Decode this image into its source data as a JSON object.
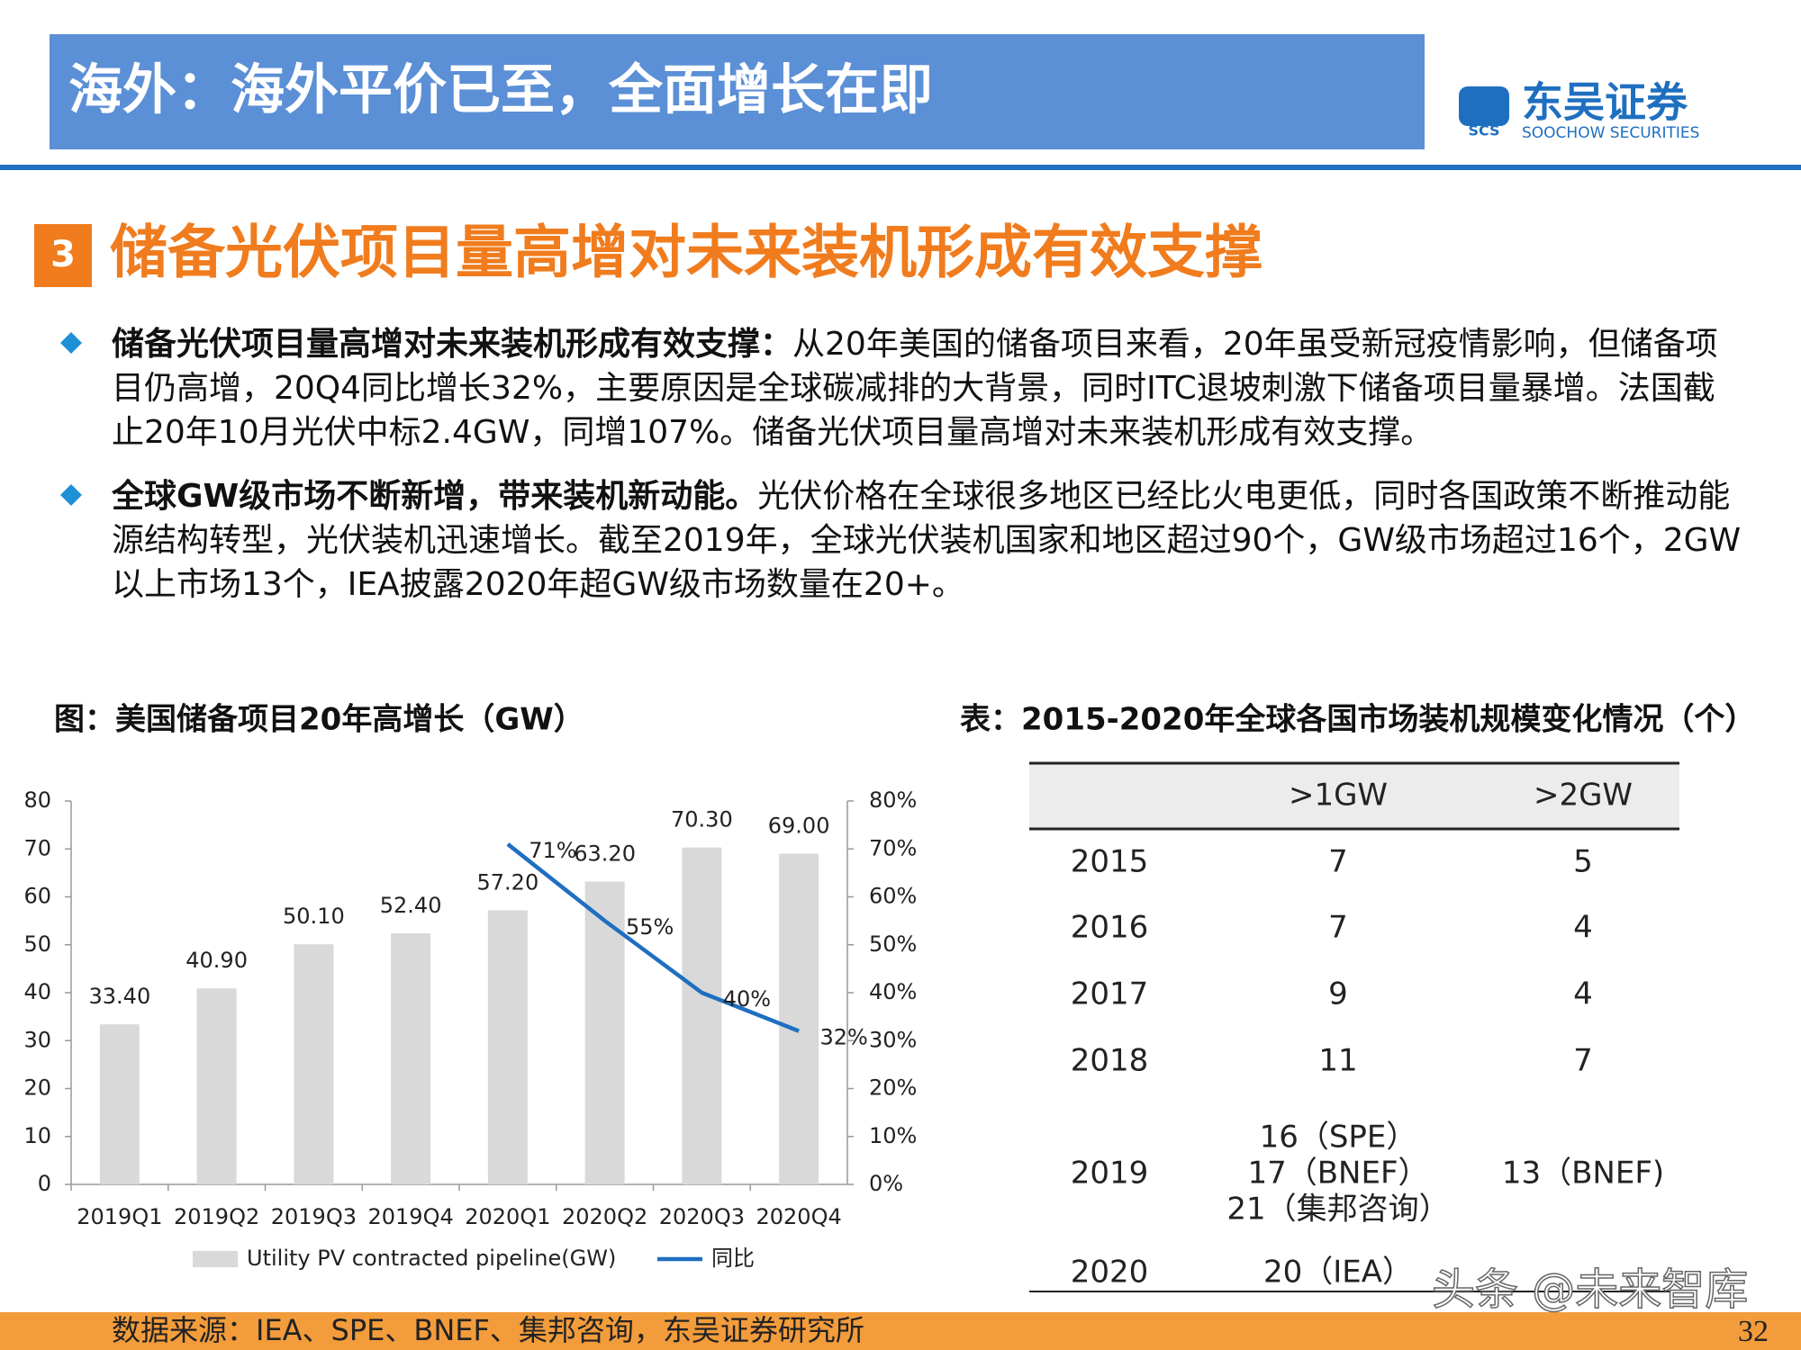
{
  "header": {
    "title": "海外：海外平价已至，全面增长在即",
    "logo_mark": "SCS",
    "logo_name": "东吴证券",
    "logo_en": "SOOCHOW SECURITIES"
  },
  "section": {
    "number": "3",
    "title": "储备光伏项目量高增对未来装机形成有效支撑"
  },
  "bullets": [
    {
      "bold": "储备光伏项目量高增对未来装机形成有效支撑：",
      "text": "从20年美国的储备项目来看，20年虽受新冠疫情影响，但储备项目仍高增，20Q4同比增长32%，主要原因是全球碳减排的大背景，同时ITC退坡刺激下储备项目量暴增。法国截止20年10月光伏中标2.4GW，同增107%。储备光伏项目量高增对未来装机形成有效支撑。"
    },
    {
      "bold": "全球GW级市场不断新增，带来装机新动能。",
      "text": "光伏价格在全球很多地区已经比火电更低，同时各国政策不断推动能源结构转型，光伏装机迅速增长。截至2019年，全球光伏装机国家和地区超过90个，GW级市场超过16个，2GW以上市场13个，IEA披露2020年超GW级市场数量在20+。"
    }
  ],
  "chart_data": {
    "type": "bar",
    "title": "图：美国储备项目20年高增长（GW）",
    "categories": [
      "2019Q1",
      "2019Q2",
      "2019Q3",
      "2019Q4",
      "2020Q1",
      "2020Q2",
      "2020Q3",
      "2020Q4"
    ],
    "series": [
      {
        "name": "Utility PV contracted pipeline(GW)",
        "type": "bar",
        "color": "#d9d9d9",
        "values": [
          33.4,
          40.9,
          50.1,
          52.4,
          57.2,
          63.2,
          70.3,
          69.0
        ],
        "value_labels": [
          "33.40",
          "40.90",
          "50.10",
          "52.40",
          "57.20",
          "63.20",
          "70.30",
          "69.00"
        ]
      },
      {
        "name": "同比",
        "type": "line",
        "axis": "y2",
        "color": "#1f6fc0",
        "values": [
          null,
          null,
          null,
          null,
          71,
          55,
          40,
          32
        ],
        "value_labels": [
          null,
          null,
          null,
          null,
          "71%",
          "55%",
          "40%",
          "32%"
        ]
      }
    ],
    "ylim": [
      0,
      80
    ],
    "yticks": [
      0,
      10,
      20,
      30,
      40,
      50,
      60,
      70,
      80
    ],
    "y2lim": [
      0,
      80
    ],
    "y2ticks": [
      {
        "value": 0,
        "label": "0%"
      },
      {
        "value": 10,
        "label": "10%"
      },
      {
        "value": 20,
        "label": "20%"
      },
      {
        "value": 30,
        "label": "30%"
      },
      {
        "value": 40,
        "label": "40%"
      },
      {
        "value": 50,
        "label": "50%"
      },
      {
        "value": 60,
        "label": "60%"
      },
      {
        "value": 70,
        "label": "70%"
      },
      {
        "value": 80,
        "label": "80%"
      }
    ],
    "legend": "bottom"
  },
  "table": {
    "title": "表：2015-2020年全球各国市场装机规模变化情况（个）",
    "columns": [
      null,
      ">1GW",
      ">2GW"
    ],
    "rows": [
      [
        2015,
        7,
        5
      ],
      [
        2016,
        7,
        4
      ],
      [
        2017,
        9,
        4
      ],
      [
        2018,
        11,
        7
      ],
      [
        2019,
        [
          "16（SPE）",
          "17（BNEF）",
          "21（集邦咨询）"
        ],
        "13（BNEF)"
      ],
      [
        2020,
        "20（IEA）",
        null
      ]
    ]
  },
  "source": "数据来源：IEA、SPE、BNEF、集邦咨询，东吴证券研究所",
  "watermark": "头条 @未来智库",
  "page_number": 32
}
